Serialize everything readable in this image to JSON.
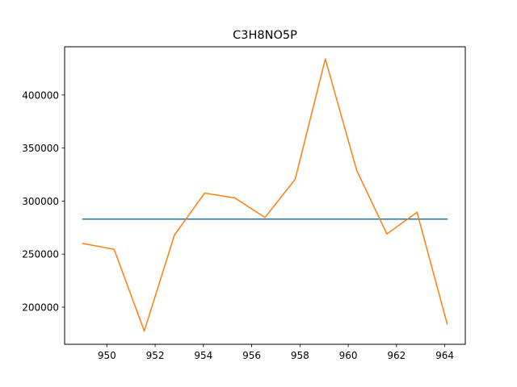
{
  "chart_data": {
    "type": "line",
    "title": "C3H8NO5P",
    "xlabel": "",
    "ylabel": "",
    "xlim": [
      948.25,
      964.85
    ],
    "ylim": [
      165000,
      445500
    ],
    "x_ticks": [
      950,
      952,
      954,
      956,
      958,
      960,
      962,
      964
    ],
    "y_ticks": [
      200000,
      250000,
      300000,
      350000,
      400000
    ],
    "grid": false,
    "series": [
      {
        "color": "#1f77b4",
        "x": [
          949.0,
          964.1
        ],
        "y": [
          283000,
          283000
        ]
      },
      {
        "color": "#ff7f0e",
        "x": [
          949.0,
          950.3,
          951.55,
          952.8,
          954.05,
          955.3,
          956.55,
          957.8,
          959.05,
          960.35,
          961.6,
          962.85,
          964.1
        ],
        "y": [
          260000,
          254500,
          177500,
          268000,
          307500,
          303000,
          284500,
          320500,
          434000,
          329000,
          269000,
          289500,
          184000
        ]
      }
    ]
  }
}
